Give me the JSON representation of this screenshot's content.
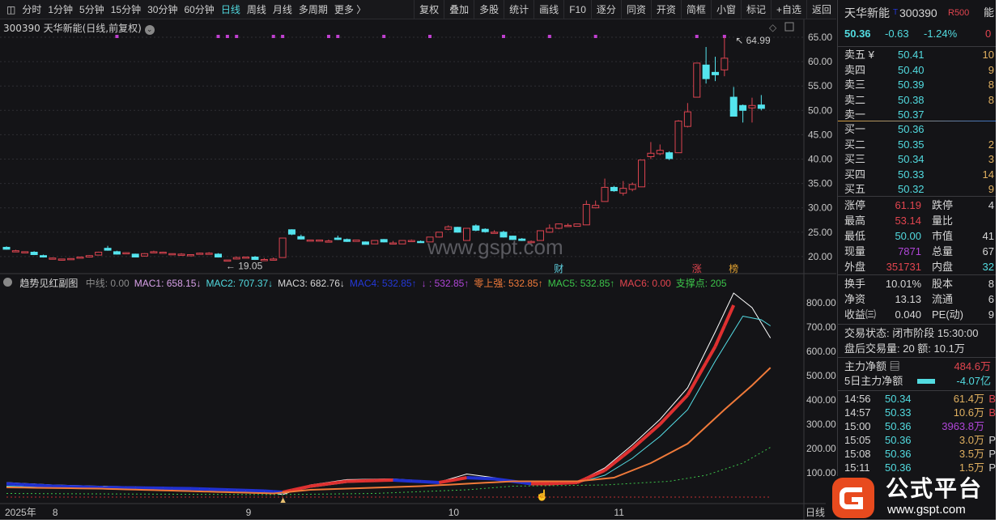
{
  "toolbar": {
    "left": [
      "分时",
      "1分钟",
      "5分钟",
      "15分钟",
      "30分钟",
      "60分钟",
      "日线",
      "周线",
      "月线",
      "多周期",
      "更多 〉"
    ],
    "active": "日线",
    "right": [
      "复权",
      "叠加",
      "多股",
      "统计",
      "画线",
      "F10",
      "逐分",
      "同资",
      "开资",
      "简框",
      "小窗",
      "标记",
      "+自选",
      "返回"
    ]
  },
  "chart_title": "300390 天华新能(日线,前复权)",
  "watermark": "www.gspt.com",
  "chart_data": [
    {
      "type": "candlestick",
      "title": "300390 天华新能(日线,前复权)",
      "ylim": [
        17,
        67
      ],
      "yticks": [
        "65.00",
        "60.00",
        "55.00",
        "50.00",
        "45.00",
        "40.00",
        "35.00",
        "30.00",
        "25.00",
        "20.00"
      ],
      "grid": true,
      "xticks": [
        {
          "label": "2025年",
          "bar": 0
        },
        {
          "label": "8",
          "bar": 5
        },
        {
          "label": "9",
          "bar": 26
        },
        {
          "label": "10",
          "bar": 48
        },
        {
          "label": "11",
          "bar": 66
        }
      ],
      "x_axis_right_label": "日线",
      "annotations": {
        "high_label": "64.99",
        "low_label": "19.05",
        "markers": [
          {
            "bar": 60,
            "text": "财",
            "color": "#5fd0e0"
          },
          {
            "bar": 75,
            "text": "涨",
            "color": "#e2454f"
          },
          {
            "bar": 79,
            "text": "榜",
            "color": "#e0a030"
          }
        ]
      },
      "top_dot_bars": [
        12,
        23,
        24,
        25,
        29,
        30,
        35,
        36,
        41,
        46,
        54,
        59,
        64,
        75,
        78
      ],
      "ohlc": [
        [
          21.9,
          22.1,
          21.4,
          21.5
        ],
        [
          21.2,
          21.4,
          21.0,
          21.2
        ],
        [
          20.9,
          21.0,
          20.8,
          21.0
        ],
        [
          20.9,
          21.1,
          20.3,
          20.4
        ],
        [
          20.2,
          20.4,
          19.8,
          19.9
        ],
        [
          19.7,
          19.8,
          19.6,
          19.7
        ],
        [
          19.3,
          19.4,
          19.2,
          19.5
        ],
        [
          19.5,
          19.6,
          19.4,
          19.6
        ],
        [
          19.7,
          19.8,
          19.6,
          19.9
        ],
        [
          19.9,
          20.3,
          19.8,
          20.2
        ],
        [
          20.3,
          21.0,
          20.3,
          20.9
        ],
        [
          21.7,
          22.2,
          21.2,
          21.3
        ],
        [
          21.0,
          21.2,
          20.4,
          20.5
        ],
        [
          20.6,
          20.9,
          20.5,
          20.8
        ],
        [
          20.5,
          20.6,
          19.9,
          19.9
        ],
        [
          20.1,
          20.7,
          20.0,
          20.6
        ],
        [
          21.0,
          21.2,
          20.9,
          21.0
        ],
        [
          20.9,
          21.0,
          20.8,
          20.9
        ],
        [
          20.5,
          20.6,
          20.5,
          20.6
        ],
        [
          20.5,
          20.7,
          20.3,
          20.5
        ],
        [
          20.3,
          20.4,
          20.2,
          20.4
        ],
        [
          20.5,
          20.8,
          20.5,
          20.7
        ],
        [
          20.7,
          20.9,
          20.6,
          20.7
        ],
        [
          20.5,
          20.7,
          19.8,
          19.9
        ],
        [
          19.2,
          19.3,
          19.05,
          19.3
        ],
        [
          19.5,
          20.0,
          19.4,
          19.8
        ],
        [
          19.8,
          19.9,
          19.7,
          19.9
        ],
        [
          19.9,
          20.1,
          19.3,
          19.4
        ],
        [
          19.4,
          19.7,
          19.2,
          19.4
        ],
        [
          19.3,
          19.8,
          19.2,
          19.5
        ],
        [
          19.8,
          23.8,
          19.8,
          23.8
        ],
        [
          25.5,
          25.6,
          24.4,
          24.6
        ],
        [
          24.1,
          24.5,
          23.5,
          23.6
        ],
        [
          23.3,
          23.4,
          23.2,
          23.4
        ],
        [
          23.3,
          23.4,
          23.2,
          23.4
        ],
        [
          23.2,
          23.5,
          22.9,
          23.2
        ],
        [
          23.8,
          24.3,
          23.4,
          23.5
        ],
        [
          23.5,
          23.7,
          23.0,
          23.1
        ],
        [
          23.1,
          23.4,
          23.1,
          23.4
        ],
        [
          23.0,
          23.1,
          22.5,
          22.5
        ],
        [
          22.6,
          23.3,
          22.6,
          23.3
        ],
        [
          23.5,
          23.6,
          22.9,
          23.0
        ],
        [
          22.8,
          23.2,
          22.5,
          22.8
        ],
        [
          22.6,
          23.3,
          22.6,
          23.3
        ],
        [
          23.3,
          23.5,
          23.1,
          23.3
        ],
        [
          23.1,
          23.3,
          22.8,
          22.9
        ],
        [
          23.0,
          24.0,
          23.0,
          24.0
        ],
        [
          24.0,
          25.0,
          23.9,
          25.0
        ],
        [
          25.6,
          26.4,
          25.4,
          26.1
        ],
        [
          26.0,
          26.1,
          24.9,
          25.0
        ],
        [
          23.3,
          25.8,
          23.3,
          25.8
        ],
        [
          26.3,
          26.6,
          25.2,
          25.4
        ],
        [
          25.6,
          25.8,
          24.9,
          25.1
        ],
        [
          24.8,
          25.4,
          24.8,
          25.0
        ],
        [
          25.0,
          25.3,
          23.9,
          24.0
        ],
        [
          24.2,
          24.3,
          23.4,
          23.5
        ],
        [
          23.6,
          23.8,
          23.2,
          23.3
        ],
        [
          23.0,
          23.3,
          22.7,
          23.1
        ],
        [
          23.3,
          25.3,
          23.3,
          25.3
        ],
        [
          25.0,
          26.6,
          24.9,
          25.8
        ],
        [
          25.8,
          26.8,
          25.6,
          26.7
        ],
        [
          26.4,
          26.8,
          26.2,
          26.4
        ],
        [
          26.2,
          26.7,
          26.2,
          26.7
        ],
        [
          26.5,
          31.5,
          26.5,
          30.7
        ],
        [
          30.0,
          31.5,
          29.9,
          30.5
        ],
        [
          31.3,
          36.0,
          31.3,
          34.2
        ],
        [
          34.2,
          34.5,
          33.3,
          33.5
        ],
        [
          33.0,
          35.5,
          32.5,
          34.0
        ],
        [
          33.8,
          35.2,
          33.4,
          34.8
        ],
        [
          34.3,
          39.8,
          34.3,
          39.8
        ],
        [
          40.5,
          43.5,
          40.0,
          41.2
        ],
        [
          41.1,
          43.0,
          40.8,
          41.8
        ],
        [
          41.3,
          41.6,
          39.8,
          40.1
        ],
        [
          41.3,
          48.0,
          41.3,
          47.8
        ],
        [
          46.7,
          51.5,
          46.5,
          49.7
        ],
        [
          52.7,
          59.7,
          52.7,
          59.7
        ],
        [
          59.3,
          63.0,
          55.5,
          56.5
        ],
        [
          57.8,
          61.0,
          56.0,
          57.3
        ],
        [
          58.3,
          64.99,
          57.0,
          60.7
        ],
        [
          52.7,
          54.8,
          48.8,
          48.8
        ],
        [
          51.0,
          51.2,
          47.5,
          50.0
        ],
        [
          50.5,
          52.6,
          47.5,
          51.0
        ],
        [
          51.1,
          53.14,
          50.0,
          50.4
        ]
      ]
    },
    {
      "type": "line",
      "title": "趋势见红副图",
      "ylim": [
        -10,
        880
      ],
      "yticks": [
        "800.00",
        "700.00",
        "600.00",
        "500.00",
        "400.00",
        "300.00",
        "200.00",
        "100.00"
      ],
      "series": [
        {
          "color": "#ffffff",
          "points": [
            [
              0,
              60
            ],
            [
              5,
              50
            ],
            [
              10,
              45
            ],
            [
              20,
              38
            ],
            [
              28,
              25
            ],
            [
              30,
              10
            ],
            [
              33,
              50
            ],
            [
              37,
              72
            ],
            [
              42,
              75
            ],
            [
              47,
              62
            ],
            [
              50,
              95
            ],
            [
              53,
              80
            ],
            [
              57,
              50
            ],
            [
              59,
              50
            ],
            [
              62,
              62
            ],
            [
              65,
              120
            ],
            [
              68,
              215
            ],
            [
              71,
              320
            ],
            [
              74,
              450
            ],
            [
              77,
              680
            ],
            [
              79,
              840
            ],
            [
              81,
              780
            ],
            [
              83,
              655
            ]
          ]
        },
        {
          "color": "#55e0e8",
          "points": [
            [
              0,
              45
            ],
            [
              5,
              40
            ],
            [
              10,
              38
            ],
            [
              20,
              30
            ],
            [
              28,
              22
            ],
            [
              30,
              15
            ],
            [
              33,
              40
            ],
            [
              37,
              60
            ],
            [
              42,
              68
            ],
            [
              47,
              58
            ],
            [
              50,
              78
            ],
            [
              53,
              72
            ],
            [
              57,
              52
            ],
            [
              59,
              52
            ],
            [
              62,
              58
            ],
            [
              65,
              90
            ],
            [
              68,
              160
            ],
            [
              71,
              250
            ],
            [
              74,
              360
            ],
            [
              77,
              560
            ],
            [
              80,
              745
            ],
            [
              82,
              730
            ],
            [
              83,
              705
            ]
          ]
        },
        {
          "color": "#e03030",
          "width": 4,
          "points": [
            [
              0,
              55
            ],
            [
              5,
              45
            ],
            [
              10,
              40
            ],
            [
              20,
              35
            ],
            [
              28,
              25
            ],
            [
              30,
              20
            ],
            [
              33,
              45
            ],
            [
              37,
              65
            ],
            [
              42,
              70
            ],
            [
              47,
              60
            ],
            [
              50,
              80
            ],
            [
              53,
              75
            ],
            [
              57,
              55
            ],
            [
              59,
              55
            ],
            [
              62,
              60
            ],
            [
              65,
              110
            ],
            [
              68,
              200
            ],
            [
              71,
              300
            ],
            [
              74,
              420
            ],
            [
              77,
              620
            ],
            [
              79,
              790
            ]
          ]
        },
        {
          "color": "#f07a3a",
          "width": 2,
          "points": [
            [
              0,
              40
            ],
            [
              10,
              35
            ],
            [
              29,
              15
            ],
            [
              33,
              30
            ],
            [
              45,
              45
            ],
            [
              55,
              65
            ],
            [
              62,
              65
            ],
            [
              66,
              80
            ],
            [
              70,
              140
            ],
            [
              74,
              220
            ],
            [
              78,
              360
            ],
            [
              81,
              460
            ],
            [
              83,
              533
            ]
          ]
        },
        {
          "color": "#3cc44a",
          "dashed": true,
          "points": [
            [
              0,
              15
            ],
            [
              29,
              10
            ],
            [
              40,
              15
            ],
            [
              50,
              30
            ],
            [
              55,
              45
            ],
            [
              65,
              50
            ],
            [
              72,
              65
            ],
            [
              76,
              90
            ],
            [
              80,
              140
            ],
            [
              83,
              205
            ]
          ]
        },
        {
          "color": "#c03030",
          "dashed": true,
          "points": [
            [
              0,
              0
            ],
            [
              83,
              0
            ]
          ]
        }
      ]
    }
  ],
  "indicator": {
    "name": "趋势见红副图",
    "items": [
      {
        "text": "中线: 0.00",
        "color": "#8a8a8a"
      },
      {
        "text": "MAC1: 658.15↓",
        "color": "#d8a0e8"
      },
      {
        "text": "MAC2: 707.37↓",
        "color": "#52dbe0"
      },
      {
        "text": "MAC3: 682.76↓",
        "color": "#d6d6d6"
      },
      {
        "text": "MAC4: 532.85↑",
        "color": "#2438d8"
      },
      {
        "text": "↓ : 532.85↑",
        "color": "#b046d8"
      },
      {
        "text": "零上强: 532.85↑",
        "color": "#f07a3a"
      },
      {
        "text": "MAC5: 532.85↑",
        "color": "#3cc44a"
      },
      {
        "text": "MAC6: 0.00",
        "color": "#e2454f"
      },
      {
        "text": "支撑点: 205",
        "color": "#3cc44a"
      }
    ]
  },
  "panel": {
    "name": "天华新能",
    "code": "300390",
    "tag": "R500",
    "t": "T",
    "side_label": "能",
    "side_value": "0",
    "price": "50.36",
    "change": "-0.63",
    "pct": "-1.24%",
    "asks": [
      {
        "l": "卖五 ¥",
        "p": "50.41",
        "v": "10"
      },
      {
        "l": "卖四",
        "p": "50.40",
        "v": "9"
      },
      {
        "l": "卖三",
        "p": "50.39",
        "v": "8"
      },
      {
        "l": "卖二",
        "p": "50.38",
        "v": "8"
      },
      {
        "l": "卖一",
        "p": "50.37",
        "v": ""
      }
    ],
    "bids": [
      {
        "l": "买一",
        "p": "50.36",
        "v": ""
      },
      {
        "l": "买二",
        "p": "50.35",
        "v": "2"
      },
      {
        "l": "买三",
        "p": "50.34",
        "v": "3"
      },
      {
        "l": "买四",
        "p": "50.33",
        "v": "14"
      },
      {
        "l": "买五",
        "p": "50.32",
        "v": "9"
      }
    ],
    "stats": [
      [
        "涨停",
        "61.19",
        "rd",
        "跌停",
        "4"
      ],
      [
        "最高",
        "53.14",
        "rd",
        "量比",
        ""
      ],
      [
        "最低",
        "50.00",
        "cy",
        "市值",
        "41"
      ],
      [
        "现量",
        "7871",
        "pu",
        "总量",
        "67"
      ],
      [
        "外盘",
        "351731",
        "rd",
        "内盘",
        "32"
      ]
    ],
    "stats2": [
      [
        "换手",
        "10.01%",
        "wh",
        "股本",
        "8"
      ],
      [
        "净资",
        "13.13",
        "wh",
        "流通",
        "6"
      ],
      [
        "收益㈢",
        "0.040",
        "wh",
        "PE(动)",
        "9"
      ]
    ],
    "status": "交易状态: 闭市阶段 15:30:00",
    "after": "盘后交易量: 20  额: 10.1万",
    "main_net_label": "主力净额",
    "main_net": "484.6万",
    "five_net_label": "5日主力净额",
    "five_net": "-4.07亿",
    "ticks": [
      [
        "14:56",
        "50.34",
        "61.4万",
        "B"
      ],
      [
        "14:57",
        "50.33",
        "10.6万",
        "B"
      ],
      [
        "15:00",
        "50.36",
        "3963.8万",
        ""
      ],
      [
        "15:05",
        "50.36",
        "3.0万",
        "P"
      ],
      [
        "15:08",
        "50.36",
        "3.5万",
        "P"
      ],
      [
        "15:11",
        "50.36",
        "1.5万",
        "P"
      ]
    ]
  },
  "logo": {
    "text": "公式平台",
    "url": "www.gspt.com"
  }
}
